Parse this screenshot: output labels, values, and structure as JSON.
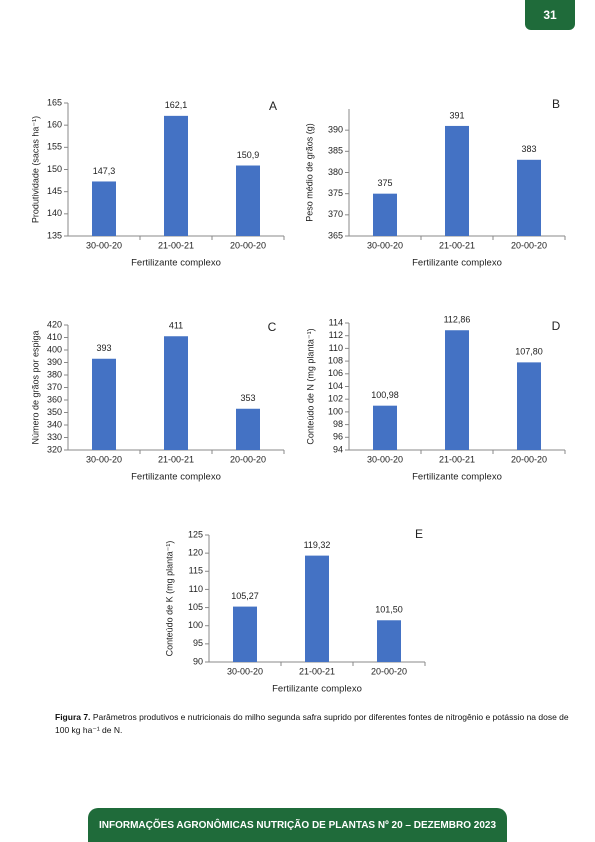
{
  "page_number": "31",
  "chart_data": [
    {
      "type": "bar",
      "panel_label": "A",
      "ylabel": "Produtividade (sacas ha⁻¹)",
      "xlabel": "Fertilizante complexo",
      "categories": [
        "30-00-20",
        "21-00-21",
        "20-00-20"
      ],
      "values": [
        147.3,
        162.1,
        150.9
      ],
      "value_labels": [
        "147,3",
        "162,1",
        "150,9"
      ],
      "color": "#4472c4",
      "ylim": [
        135,
        165
      ],
      "yticks": [
        135,
        140,
        145,
        150,
        155,
        160,
        165
      ]
    },
    {
      "type": "bar",
      "panel_label": "B",
      "ylabel": "Peso médio de grãos (g)",
      "xlabel": "Fertilizante complexo",
      "categories": [
        "30-00-20",
        "21-00-21",
        "20-00-20"
      ],
      "values": [
        375,
        391,
        383
      ],
      "color": "#4472c4",
      "ylim": [
        365,
        395
      ],
      "yticks": [
        365,
        370,
        375,
        380,
        385,
        390
      ]
    },
    {
      "type": "bar",
      "panel_label": "C",
      "ylabel": "Número de grãos por espiga",
      "xlabel": "Fertilizante complexo",
      "categories": [
        "30-00-20",
        "21-00-21",
        "20-00-20"
      ],
      "values": [
        393,
        411,
        353
      ],
      "color": "#4472c4",
      "ylim": [
        320,
        420
      ],
      "yticks": [
        320,
        330,
        340,
        350,
        360,
        370,
        380,
        390,
        400,
        410,
        420
      ]
    },
    {
      "type": "bar",
      "panel_label": "D",
      "ylabel": "Conteúdo de N (mg planta⁻¹)",
      "xlabel": "Fertilizante complexo",
      "categories": [
        "30-00-20",
        "21-00-21",
        "20-00-20"
      ],
      "values": [
        100.98,
        112.86,
        107.8
      ],
      "value_labels": [
        "100,98",
        "112,86",
        "107,80"
      ],
      "color": "#4472c4",
      "ylim": [
        94,
        114
      ],
      "yticks": [
        94,
        96,
        98,
        100,
        102,
        104,
        106,
        108,
        110,
        112,
        114
      ]
    },
    {
      "type": "bar",
      "panel_label": "E",
      "ylabel": "Conteúdo de K (mg planta⁻¹)",
      "xlabel": "Fertilizante complexo",
      "categories": [
        "30-00-20",
        "21-00-21",
        "20-00-20"
      ],
      "values": [
        105.27,
        119.32,
        101.5
      ],
      "value_labels": [
        "105,27",
        "119,32",
        "101,50"
      ],
      "color": "#4472c4",
      "ylim": [
        90,
        125
      ],
      "yticks": [
        90,
        95,
        100,
        105,
        110,
        115,
        120,
        125
      ]
    }
  ],
  "caption": {
    "label": "Figura 7.",
    "text": "Parâmetros produtivos e nutricionais do milho segunda safra suprido por diferentes fontes de nitrogênio e potássio na dose de 100 kg ha⁻¹ de N."
  },
  "footer": "INFORMAÇÕES AGRONÔMICAS NUTRIÇÃO DE PLANTAS Nº 20 – DEZEMBRO 2023"
}
